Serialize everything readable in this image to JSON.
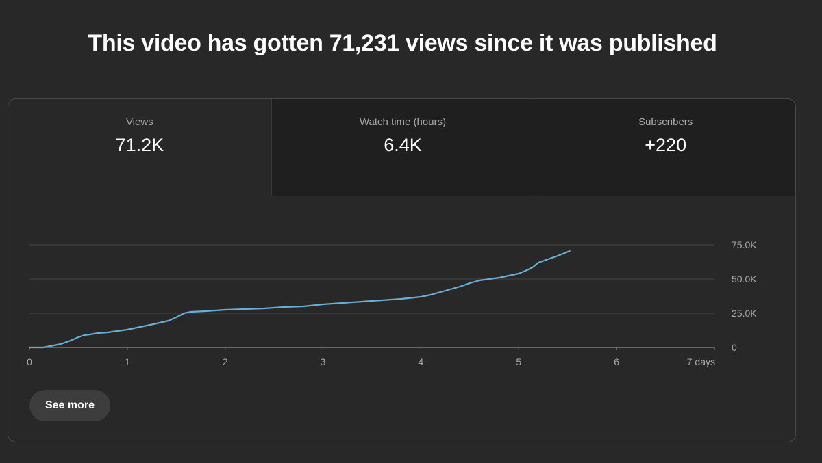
{
  "headline": "This video has gotten 71,231 views since it was published",
  "tabs": [
    {
      "label": "Views",
      "value": "71.2K",
      "active": true
    },
    {
      "label": "Watch time (hours)",
      "value": "6.4K",
      "active": false
    },
    {
      "label": "Subscribers",
      "value": "+220",
      "active": false
    }
  ],
  "see_more_label": "See more",
  "colors": {
    "line": "#6aaed6",
    "background": "#282828",
    "tab_inactive": "#1f1f1f"
  },
  "chart_data": {
    "type": "line",
    "xlabel": "",
    "ylabel": "",
    "x_ticks": [
      0,
      1,
      2,
      3,
      4,
      5,
      6,
      7
    ],
    "x_tick_labels": [
      "0",
      "1",
      "2",
      "3",
      "4",
      "5",
      "6",
      "7 days"
    ],
    "xlim": [
      0,
      7
    ],
    "y_ticks": [
      0,
      25000,
      50000,
      75000
    ],
    "y_tick_labels": [
      "0",
      "25.0K",
      "50.0K",
      "75.0K"
    ],
    "ylim": [
      0,
      75000
    ],
    "grid": true,
    "y_axis_position": "right",
    "series": [
      {
        "values": [
          [
            0,
            0
          ],
          [
            0.14,
            0
          ],
          [
            0.25,
            1500
          ],
          [
            0.32,
            2500
          ],
          [
            0.42,
            5000
          ],
          [
            0.5,
            7500
          ],
          [
            0.56,
            9000
          ],
          [
            0.62,
            9500
          ],
          [
            0.7,
            10500
          ],
          [
            0.8,
            11000
          ],
          [
            0.9,
            12000
          ],
          [
            1.0,
            13000
          ],
          [
            1.1,
            14500
          ],
          [
            1.2,
            16000
          ],
          [
            1.3,
            17500
          ],
          [
            1.42,
            19500
          ],
          [
            1.5,
            22000
          ],
          [
            1.58,
            25000
          ],
          [
            1.65,
            26000
          ],
          [
            1.8,
            26500
          ],
          [
            2.0,
            27500
          ],
          [
            2.2,
            28000
          ],
          [
            2.4,
            28500
          ],
          [
            2.6,
            29500
          ],
          [
            2.8,
            30000
          ],
          [
            3.0,
            31500
          ],
          [
            3.2,
            32500
          ],
          [
            3.4,
            33500
          ],
          [
            3.6,
            34500
          ],
          [
            3.8,
            35500
          ],
          [
            4.0,
            37000
          ],
          [
            4.1,
            38500
          ],
          [
            4.2,
            40500
          ],
          [
            4.3,
            42500
          ],
          [
            4.4,
            44500
          ],
          [
            4.5,
            47000
          ],
          [
            4.6,
            49000
          ],
          [
            4.7,
            50000
          ],
          [
            4.8,
            51000
          ],
          [
            4.9,
            52500
          ],
          [
            5.0,
            54000
          ],
          [
            5.1,
            57000
          ],
          [
            5.15,
            59000
          ],
          [
            5.2,
            62000
          ],
          [
            5.3,
            64500
          ],
          [
            5.4,
            67000
          ],
          [
            5.52,
            70500
          ]
        ]
      }
    ]
  }
}
